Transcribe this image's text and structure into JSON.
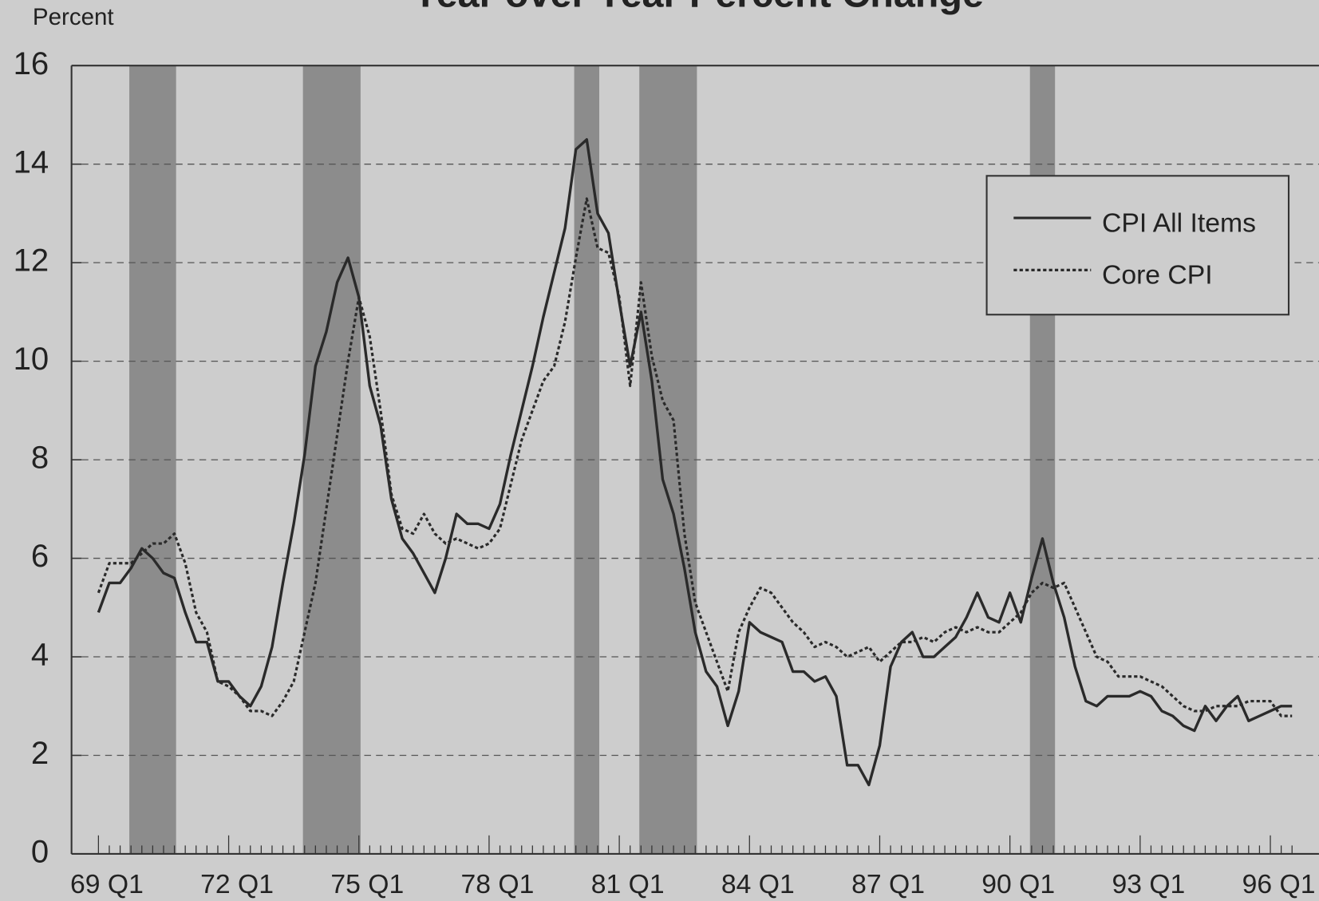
{
  "chart_data": {
    "type": "line",
    "title": "Year over Year Percent Change",
    "ylabel": "Percent",
    "categories": [
      "69 Q1",
      null,
      null,
      null,
      null,
      null,
      null,
      null,
      null,
      null,
      null,
      null,
      "72 Q1",
      null,
      null,
      null,
      null,
      null,
      null,
      null,
      null,
      null,
      null,
      null,
      "75 Q1",
      null,
      null,
      null,
      null,
      null,
      null,
      null,
      null,
      null,
      null,
      null,
      "78 Q1",
      null,
      null,
      null,
      null,
      null,
      null,
      null,
      null,
      null,
      null,
      null,
      "81 Q1",
      null,
      null,
      null,
      null,
      null,
      null,
      null,
      null,
      null,
      null,
      null,
      "84 Q1",
      null,
      null,
      null,
      null,
      null,
      null,
      null,
      null,
      null,
      null,
      null,
      "87 Q1",
      null,
      null,
      null,
      null,
      null,
      null,
      null,
      null,
      null,
      null,
      null,
      "90 Q1",
      null,
      null,
      null,
      null,
      null,
      null,
      null,
      null,
      null,
      null,
      null,
      "93 Q1",
      null,
      null,
      null,
      null,
      null,
      null,
      null,
      null,
      null,
      null,
      null,
      "96 Q1",
      null,
      null
    ],
    "series": [
      {
        "name": "CPI All Items",
        "color": "#2a2a2a",
        "style": "solid",
        "values": [
          4.9,
          5.5,
          5.5,
          5.8,
          6.2,
          6.0,
          5.7,
          5.6,
          4.9,
          4.3,
          4.3,
          3.5,
          3.5,
          3.2,
          3.0,
          3.4,
          4.2,
          5.5,
          6.7,
          8.1,
          9.9,
          10.6,
          11.6,
          12.1,
          11.3,
          9.5,
          8.7,
          7.2,
          6.4,
          6.1,
          5.7,
          5.3,
          6.0,
          6.9,
          6.7,
          6.7,
          6.6,
          7.1,
          8.1,
          9.0,
          9.9,
          10.9,
          11.8,
          12.7,
          14.3,
          14.5,
          13.0,
          12.6,
          11.2,
          9.9,
          11.0,
          9.6,
          7.6,
          6.9,
          5.8,
          4.5,
          3.7,
          3.4,
          2.6,
          3.3,
          4.7,
          4.5,
          4.4,
          4.3,
          3.7,
          3.7,
          3.5,
          3.6,
          3.2,
          1.8,
          1.8,
          1.4,
          2.2,
          3.8,
          4.3,
          4.5,
          4.0,
          4.0,
          4.2,
          4.4,
          4.8,
          5.3,
          4.8,
          4.7,
          5.3,
          4.7,
          5.6,
          6.4,
          5.5,
          4.8,
          3.8,
          3.1,
          3.0,
          3.2,
          3.2,
          3.2,
          3.3,
          3.2,
          2.9,
          2.8,
          2.6,
          2.5,
          3.0,
          2.7,
          3.0,
          3.2,
          2.7,
          2.8,
          2.9,
          3.0,
          3.0
        ]
      },
      {
        "name": "Core CPI",
        "color": "#2a2a2a",
        "style": "dotted",
        "values": [
          5.3,
          5.9,
          5.9,
          5.9,
          6.1,
          6.3,
          6.3,
          6.5,
          5.9,
          4.9,
          4.5,
          3.5,
          3.4,
          3.2,
          2.9,
          2.9,
          2.8,
          3.1,
          3.5,
          4.5,
          5.5,
          7.0,
          8.5,
          10.0,
          11.3,
          10.5,
          9.0,
          7.3,
          6.6,
          6.5,
          6.9,
          6.5,
          6.3,
          6.4,
          6.3,
          6.2,
          6.3,
          6.6,
          7.5,
          8.4,
          9.0,
          9.6,
          9.9,
          10.8,
          12.1,
          13.3,
          12.3,
          12.2,
          11.3,
          9.5,
          11.6,
          10.1,
          9.2,
          8.8,
          6.5,
          5.1,
          4.5,
          3.9,
          3.3,
          4.5,
          5.0,
          5.4,
          5.3,
          5.0,
          4.7,
          4.5,
          4.2,
          4.3,
          4.2,
          4.0,
          4.1,
          4.2,
          3.9,
          4.1,
          4.3,
          4.3,
          4.4,
          4.3,
          4.5,
          4.6,
          4.5,
          4.6,
          4.5,
          4.5,
          4.7,
          4.9,
          5.3,
          5.5,
          5.4,
          5.5,
          5.0,
          4.5,
          4.0,
          3.9,
          3.6,
          3.6,
          3.6,
          3.5,
          3.4,
          3.2,
          3.0,
          2.9,
          2.9,
          3.0,
          3.0,
          3.0,
          3.1,
          3.1,
          3.1,
          2.8,
          2.8
        ]
      }
    ],
    "shaded_periods": [
      [
        3,
        7
      ],
      [
        19,
        24
      ],
      [
        44,
        46
      ],
      [
        50,
        55
      ],
      [
        86,
        88
      ]
    ],
    "ylim": [
      0,
      16
    ],
    "yticks": [
      0,
      2,
      4,
      6,
      8,
      10,
      12,
      14,
      16
    ],
    "grid": true,
    "legend": "upper right"
  }
}
